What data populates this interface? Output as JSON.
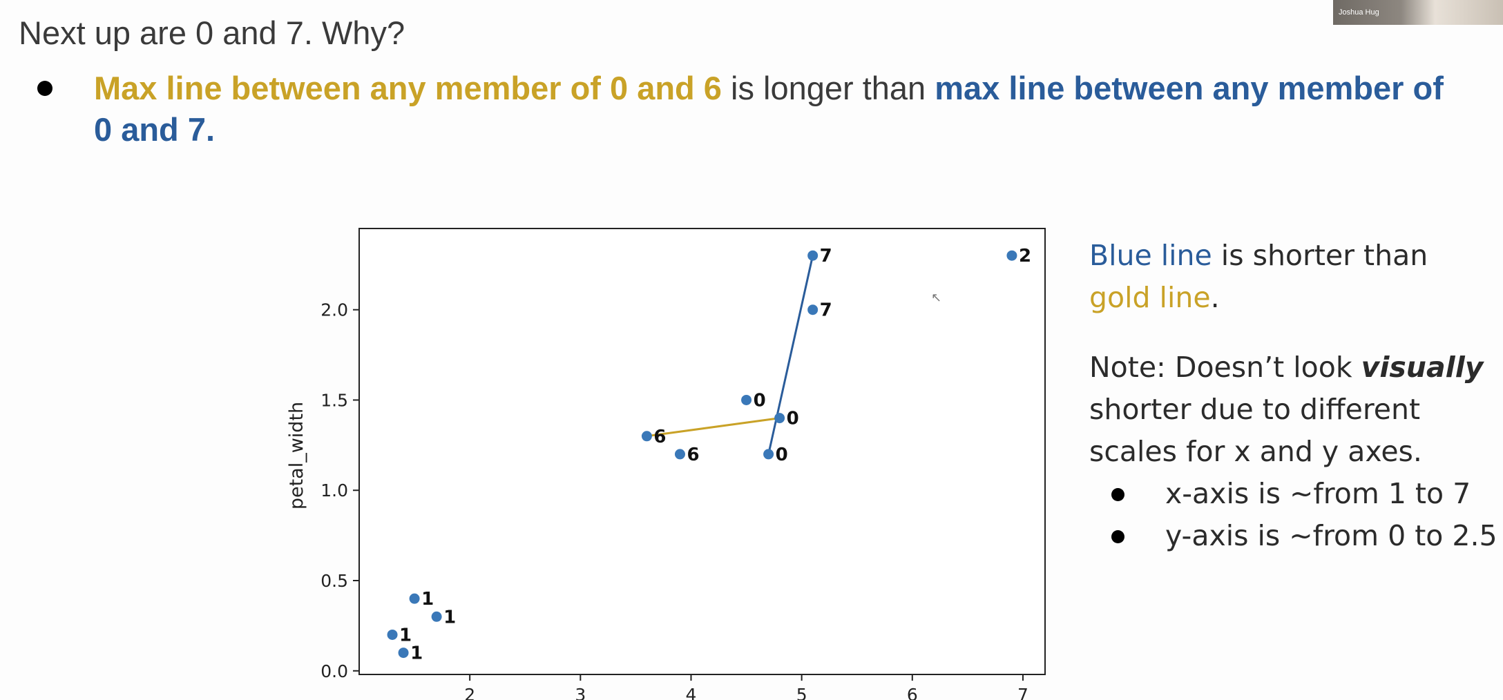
{
  "slide": {
    "title": "Next up are 0 and 7. Why?",
    "bullet": {
      "gold_phrase": "Max line between any member of 0 and 6",
      "connector": " is longer than ",
      "blue_phrase": "max line between any member of 0 and 7."
    }
  },
  "side_note": {
    "line1_blue": "Blue line",
    "line1_rest": " is shorter than",
    "line2_gold": "gold line",
    "line2_end": ".",
    "note_prefix": "Note: Doesn’t look ",
    "note_emph": "visually",
    "note_rest": " shorter due to different scales for x and y axes.",
    "items": [
      "x-axis is ~from 1 to 7",
      "y-axis is ~from 0 to 2.5"
    ]
  },
  "webcam": {
    "name": "Joshua Hug"
  },
  "colors": {
    "gold": "#c9a227",
    "blue": "#2a5c9a",
    "point": "#3a78b8"
  },
  "chart_data": {
    "type": "scatter",
    "title": "",
    "xlabel": "",
    "ylabel": "petal_width",
    "xlim": [
      1.0,
      7.2
    ],
    "ylim": [
      -0.02,
      2.45
    ],
    "xticks": [
      2,
      3,
      4,
      5,
      6,
      7
    ],
    "yticks": [
      0.0,
      0.5,
      1.0,
      1.5,
      2.0
    ],
    "ytick_labels": [
      "0.0",
      "0.5",
      "1.0",
      "1.5",
      "2.0"
    ],
    "grid": false,
    "points": [
      {
        "x": 6.9,
        "y": 2.3,
        "label": "2"
      },
      {
        "x": 5.1,
        "y": 2.3,
        "label": "7"
      },
      {
        "x": 5.1,
        "y": 2.0,
        "label": "7"
      },
      {
        "x": 4.5,
        "y": 1.5,
        "label": "0"
      },
      {
        "x": 4.8,
        "y": 1.4,
        "label": "0"
      },
      {
        "x": 4.7,
        "y": 1.2,
        "label": "0"
      },
      {
        "x": 3.6,
        "y": 1.3,
        "label": "6"
      },
      {
        "x": 3.9,
        "y": 1.2,
        "label": "6"
      },
      {
        "x": 1.5,
        "y": 0.4,
        "label": "1"
      },
      {
        "x": 1.7,
        "y": 0.3,
        "label": "1"
      },
      {
        "x": 1.3,
        "y": 0.2,
        "label": "1"
      },
      {
        "x": 1.4,
        "y": 0.1,
        "label": "1"
      }
    ],
    "lines": [
      {
        "name": "gold line",
        "color": "#c9a227",
        "from": [
          3.6,
          1.3
        ],
        "to": [
          4.8,
          1.4
        ]
      },
      {
        "name": "blue line",
        "color": "#2a5c9a",
        "from": [
          4.7,
          1.2
        ],
        "to": [
          5.1,
          2.3
        ]
      }
    ]
  }
}
